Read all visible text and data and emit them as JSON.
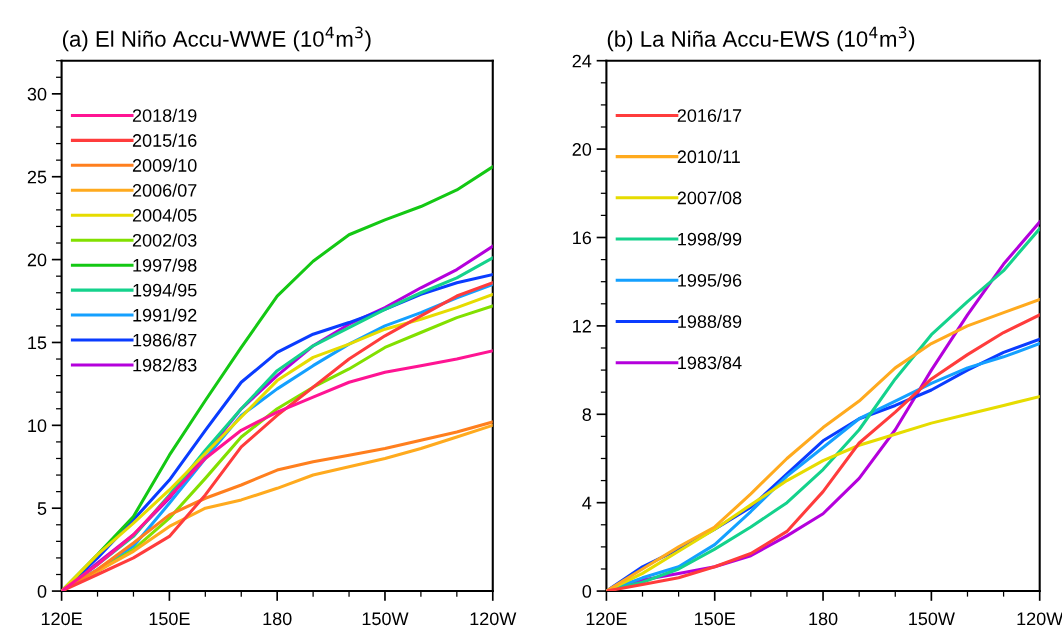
{
  "chart_data": [
    {
      "type": "line",
      "title": "(a) El Niño Accu-WWE (10$^{4}$m$^{3}$)",
      "categories": [
        "120E",
        null,
        null,
        "150E",
        null,
        null,
        "180",
        null,
        null,
        "150W",
        null,
        null,
        "120W"
      ],
      "ylim": [
        0,
        32
      ],
      "yticks": [
        0,
        {
          "value": 1,
          "label": null
        },
        {
          "value": 2,
          "label": null
        },
        {
          "value": 3,
          "label": null
        },
        {
          "value": 4,
          "label": null
        },
        5,
        {
          "value": 6,
          "label": null
        },
        {
          "value": 7,
          "label": null
        },
        {
          "value": 8,
          "label": null
        },
        {
          "value": 9,
          "label": null
        },
        10,
        {
          "value": 11,
          "label": null
        },
        {
          "value": 12,
          "label": null
        },
        {
          "value": 13,
          "label": null
        },
        {
          "value": 14,
          "label": null
        },
        15,
        {
          "value": 16,
          "label": null
        },
        {
          "value": 17,
          "label": null
        },
        {
          "value": 18,
          "label": null
        },
        {
          "value": 19,
          "label": null
        },
        20,
        {
          "value": 21,
          "label": null
        },
        {
          "value": 22,
          "label": null
        },
        {
          "value": 23,
          "label": null
        },
        {
          "value": 24,
          "label": null
        },
        25,
        {
          "value": 26,
          "label": null
        },
        {
          "value": 27,
          "label": null
        },
        {
          "value": 28,
          "label": null
        },
        {
          "value": 29,
          "label": null
        },
        30,
        {
          "value": 31,
          "label": null
        },
        {
          "value": 32,
          "label": null
        }
      ],
      "legend": "top left",
      "grid": false,
      "marker": "none",
      "line_style": "solid",
      "series": [
        {
          "name": "2018/19",
          "color": "#ff1493",
          "values": [
            0,
            1.6,
            3.4,
            5.7,
            8.0,
            9.7,
            10.8,
            11.7,
            12.6,
            13.2,
            13.6,
            14.0,
            14.5
          ]
        },
        {
          "name": "2015/16",
          "color": "#ff3c3c",
          "values": [
            0,
            1.0,
            2.0,
            3.3,
            5.8,
            8.7,
            10.6,
            12.3,
            14.0,
            15.4,
            16.6,
            17.8,
            18.6
          ]
        },
        {
          "name": "2009/10",
          "color": "#ff7f1e",
          "values": [
            0,
            1.3,
            2.9,
            4.6,
            5.6,
            6.4,
            7.3,
            7.8,
            8.2,
            8.6,
            9.1,
            9.6,
            10.2
          ]
        },
        {
          "name": "2006/07",
          "color": "#ffaa1e",
          "values": [
            0,
            1.2,
            2.4,
            3.9,
            5.0,
            5.5,
            6.2,
            7.0,
            7.5,
            8.0,
            8.6,
            9.3,
            10.0
          ]
        },
        {
          "name": "2004/05",
          "color": "#e6dc00",
          "values": [
            0,
            2.2,
            4.1,
            6.1,
            8.3,
            10.5,
            12.7,
            14.1,
            14.9,
            15.8,
            16.4,
            17.1,
            17.9
          ]
        },
        {
          "name": "2002/03",
          "color": "#82e000",
          "values": [
            0,
            1.2,
            2.5,
            4.4,
            6.8,
            9.3,
            11.0,
            12.3,
            13.4,
            14.7,
            15.6,
            16.5,
            17.2
          ]
        },
        {
          "name": "1997/98",
          "color": "#14c814",
          "values": [
            0,
            2.2,
            4.5,
            8.2,
            11.5,
            14.7,
            17.8,
            19.9,
            21.5,
            22.4,
            23.2,
            24.2,
            25.6
          ]
        },
        {
          "name": "1994/95",
          "color": "#14d28c",
          "values": [
            0,
            1.6,
            3.3,
            5.8,
            8.5,
            11.0,
            13.3,
            14.8,
            15.9,
            17.0,
            18.0,
            18.9,
            20.1
          ]
        },
        {
          "name": "1991/92",
          "color": "#14a0ff",
          "values": [
            0,
            1.3,
            2.7,
            5.3,
            8.0,
            10.6,
            12.2,
            13.6,
            14.9,
            16.0,
            16.8,
            17.7,
            18.5
          ]
        },
        {
          "name": "1986/87",
          "color": "#0a3cff",
          "values": [
            0,
            2.0,
            4.3,
            6.7,
            9.7,
            12.6,
            14.4,
            15.5,
            16.2,
            17.0,
            17.9,
            18.6,
            19.1
          ]
        },
        {
          "name": "1982/83",
          "color": "#b400dc",
          "values": [
            0,
            1.7,
            3.4,
            5.6,
            8.3,
            11.0,
            13.0,
            14.8,
            16.1,
            17.1,
            18.3,
            19.4,
            20.8
          ]
        }
      ]
    },
    {
      "type": "line",
      "title": "(b) La Niña Accu-EWS (10$^{4}$m$^{3}$)",
      "categories": [
        "120E",
        null,
        null,
        "150E",
        null,
        null,
        "180",
        null,
        null,
        "150W",
        null,
        null,
        "120W"
      ],
      "ylim": [
        0,
        24
      ],
      "yticks": [
        0,
        {
          "value": 1,
          "label": null
        },
        {
          "value": 2,
          "label": null
        },
        {
          "value": 3,
          "label": null
        },
        4,
        {
          "value": 5,
          "label": null
        },
        {
          "value": 6,
          "label": null
        },
        {
          "value": 7,
          "label": null
        },
        8,
        {
          "value": 9,
          "label": null
        },
        {
          "value": 10,
          "label": null
        },
        {
          "value": 11,
          "label": null
        },
        12,
        {
          "value": 13,
          "label": null
        },
        {
          "value": 14,
          "label": null
        },
        {
          "value": 15,
          "label": null
        },
        16,
        {
          "value": 17,
          "label": null
        },
        {
          "value": 18,
          "label": null
        },
        {
          "value": 19,
          "label": null
        },
        20,
        {
          "value": 21,
          "label": null
        },
        {
          "value": 22,
          "label": null
        },
        {
          "value": 23,
          "label": null
        },
        24
      ],
      "legend": "top left",
      "grid": false,
      "marker": "none",
      "line_style": "solid",
      "series": [
        {
          "name": "2016/17",
          "color": "#ff3c3c",
          "values": [
            0,
            0.3,
            0.6,
            1.1,
            1.7,
            2.7,
            4.5,
            6.7,
            8.1,
            9.6,
            10.7,
            11.7,
            12.5
          ]
        },
        {
          "name": "2010/11",
          "color": "#ffaa1e",
          "values": [
            0,
            1.0,
            2.0,
            2.9,
            4.4,
            6.0,
            7.4,
            8.6,
            10.1,
            11.2,
            12.0,
            12.6,
            13.2
          ]
        },
        {
          "name": "2007/08",
          "color": "#e6dc00",
          "values": [
            0,
            0.8,
            1.8,
            2.8,
            3.9,
            5.0,
            5.9,
            6.6,
            7.1,
            7.6,
            8.0,
            8.4,
            8.8
          ]
        },
        {
          "name": "1998/99",
          "color": "#14d28c",
          "values": [
            0,
            0.4,
            1.0,
            1.9,
            2.9,
            4.0,
            5.5,
            7.3,
            9.6,
            11.6,
            13.1,
            14.5,
            16.4
          ]
        },
        {
          "name": "1995/96",
          "color": "#14a0ff",
          "values": [
            0,
            0.6,
            1.1,
            2.1,
            3.6,
            5.2,
            6.5,
            7.8,
            8.6,
            9.4,
            10.1,
            10.6,
            11.2
          ]
        },
        {
          "name": "1988/89",
          "color": "#0a3cff",
          "values": [
            0,
            1.1,
            1.9,
            2.8,
            3.8,
            5.3,
            6.8,
            7.8,
            8.4,
            9.1,
            10.0,
            10.8,
            11.4
          ]
        },
        {
          "name": "1983/84",
          "color": "#b400dc",
          "values": [
            0,
            0.5,
            0.8,
            1.1,
            1.6,
            2.5,
            3.5,
            5.1,
            7.3,
            10.0,
            12.5,
            14.8,
            16.7
          ]
        }
      ]
    }
  ]
}
